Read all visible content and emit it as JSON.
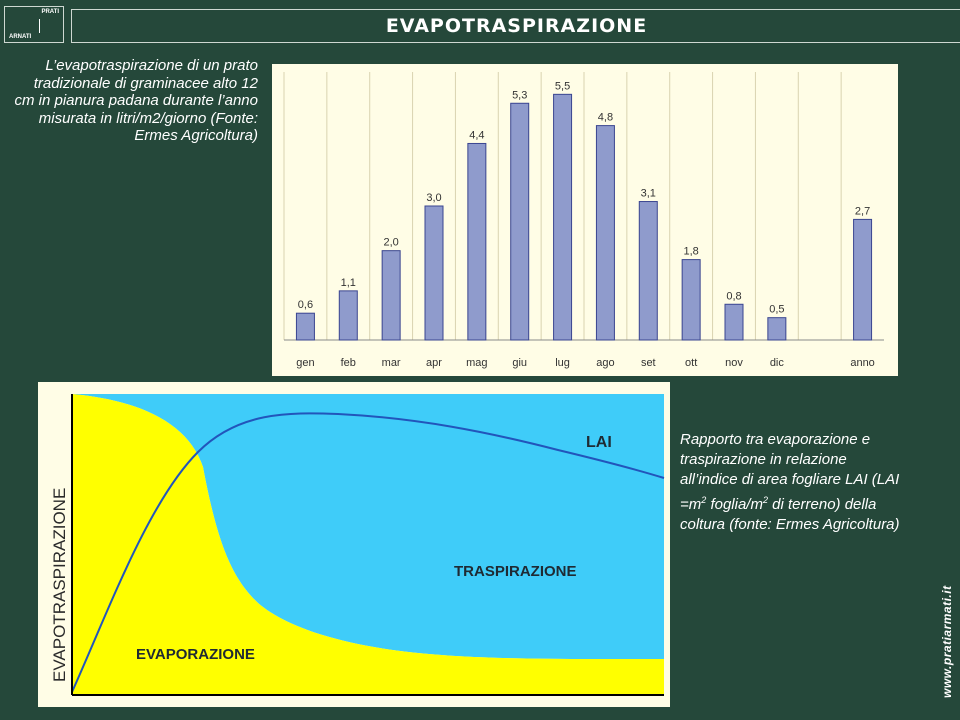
{
  "slide": {
    "title": "EVAPOTRASPIRAZIONE",
    "logo_top": "PRATI",
    "logo_bottom": "ARNATI",
    "caption_bar": "L’evapotraspirazione di un prato tradizionale di graminacee alto 12 cm in pianura padana durante l’anno misurata in litri/m2/giorno (Fonte: Ermes Agricoltura)",
    "caption_area_part1": "Rapporto tra evaporazione e traspirazione in relazione all’indice di area fogliare LAI (LAI =m",
    "caption_area_sup1": "2",
    "caption_area_part2": " foglia/m",
    "caption_area_sup2": "2",
    "caption_area_part3": " di terreno) della coltura (fonte: Ermes Agricoltura)",
    "website": "www.pratiarmati.it"
  },
  "chart_data": [
    {
      "type": "bar",
      "categories": [
        "gen",
        "feb",
        "mar",
        "apr",
        "mag",
        "giu",
        "lug",
        "ago",
        "set",
        "ott",
        "nov",
        "dic",
        "anno"
      ],
      "values": [
        0.6,
        1.1,
        2.0,
        3.0,
        4.4,
        5.3,
        5.5,
        4.8,
        3.1,
        1.8,
        0.8,
        0.5,
        2.7
      ],
      "data_labels": [
        "0,6",
        "1,1",
        "2,0",
        "3,0",
        "4,4",
        "5,3",
        "5,5",
        "4,8",
        "3,1",
        "1,8",
        "0,8",
        "0,5",
        "2,7"
      ],
      "ylim": [
        0,
        6
      ],
      "grid": true,
      "colors": {
        "bar": "#8f9bcc",
        "bar_edge": "#3a4590",
        "background": "#fffde6",
        "grid": "#d9d3b0"
      }
    },
    {
      "type": "area",
      "ylabel": "EVAPOTRASPIRAZIONE",
      "series": [
        {
          "name": "EVAPORAZIONE",
          "color": "#ffff00"
        },
        {
          "name": "TRASPIRAZIONE",
          "color": "#3fccf9"
        },
        {
          "name": "LAI",
          "color": "#2255bb"
        }
      ],
      "colors": {
        "frame": "#fffde6"
      }
    }
  ]
}
